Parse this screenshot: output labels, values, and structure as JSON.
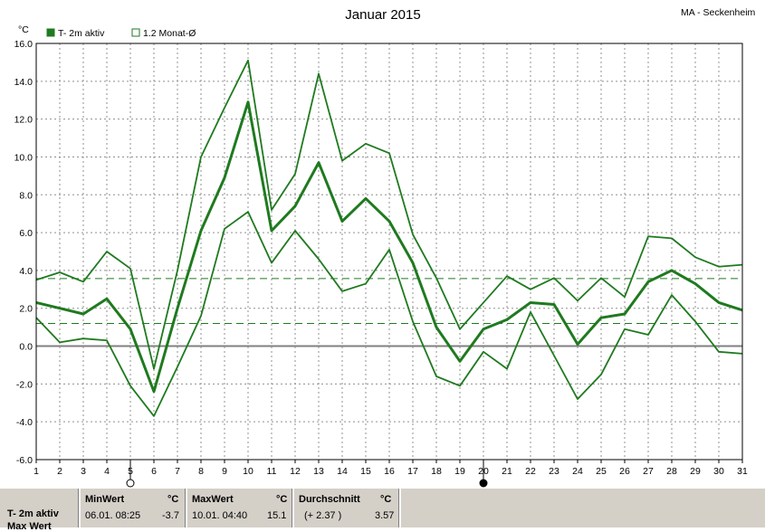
{
  "chart_data": {
    "type": "line",
    "title": "Januar 2015",
    "station": "MA - Seckenheim",
    "ylabel": "°C",
    "ylim": [
      -6.0,
      16.0
    ],
    "yticks": [
      "16.0",
      "14.0",
      "12.0",
      "10.0",
      "8.0",
      "6.0",
      "4.0",
      "2.0",
      "0.0",
      "-2.0",
      "-4.0",
      "-6.0"
    ],
    "x": [
      1,
      2,
      3,
      4,
      5,
      6,
      7,
      8,
      9,
      10,
      11,
      12,
      13,
      14,
      15,
      16,
      17,
      18,
      19,
      20,
      21,
      22,
      23,
      24,
      25,
      26,
      27,
      28,
      29,
      30,
      31
    ],
    "grid": true,
    "legend": [
      {
        "label": "T- 2m aktiv",
        "style": "filled",
        "color": "#1f7a1f"
      },
      {
        "label": "1.2 Monat-Ø",
        "style": "outline",
        "color": "#1f7a1f"
      }
    ],
    "series": [
      {
        "name": "T- 2m aktiv",
        "role": "mean",
        "color": "#1f7a1f",
        "values": [
          2.3,
          2.0,
          1.7,
          2.5,
          0.9,
          -2.4,
          2.0,
          6.1,
          8.9,
          12.9,
          6.1,
          7.4,
          9.7,
          6.6,
          7.8,
          6.6,
          4.4,
          1.0,
          -0.8,
          0.9,
          1.4,
          2.3,
          2.2,
          0.1,
          1.5,
          1.7,
          3.4,
          4.0,
          3.3,
          2.3,
          1.9
        ]
      },
      {
        "role": "max",
        "color": "#1f7a1f",
        "values": [
          3.5,
          3.9,
          3.4,
          5.0,
          4.1,
          -1.2,
          4.0,
          10.0,
          12.6,
          15.1,
          7.2,
          9.1,
          14.4,
          9.8,
          10.7,
          10.2,
          5.9,
          3.6,
          0.9,
          2.3,
          3.7,
          3.0,
          3.6,
          2.4,
          3.6,
          2.6,
          5.8,
          5.7,
          4.7,
          4.2,
          4.3
        ]
      },
      {
        "role": "min",
        "color": "#1f7a1f",
        "values": [
          1.5,
          0.2,
          0.4,
          0.3,
          -2.1,
          -3.7,
          -1.1,
          1.6,
          6.2,
          7.1,
          4.4,
          6.1,
          4.6,
          2.9,
          3.3,
          5.1,
          1.3,
          -1.6,
          -2.1,
          -0.3,
          -1.2,
          1.8,
          -0.5,
          -2.8,
          -1.5,
          0.9,
          0.6,
          2.7,
          1.3,
          -0.3,
          -0.4
        ]
      }
    ],
    "reference_lines": [
      {
        "value": 3.57,
        "style": "dashed",
        "color": "#1f7a1f"
      },
      {
        "value": 1.2,
        "style": "dashed",
        "color": "#1f7a1f"
      }
    ],
    "moon_phases": [
      {
        "day": 5,
        "type": "full"
      },
      {
        "day": 20,
        "type": "new"
      }
    ]
  },
  "stats": {
    "series_label": "T- 2m aktiv",
    "series_label_2": "Max Wert",
    "min": {
      "header": "MinWert",
      "unit": "°C",
      "datetime": "06.01.  08:25",
      "value": "-3.7"
    },
    "max": {
      "header": "MaxWert",
      "unit": "°C",
      "datetime": "10.01.  04:40",
      "value": "15.1"
    },
    "avg": {
      "header": "Durchschnitt",
      "unit": "°C",
      "delta": "(+ 2.37 )",
      "value": "3.57"
    }
  }
}
